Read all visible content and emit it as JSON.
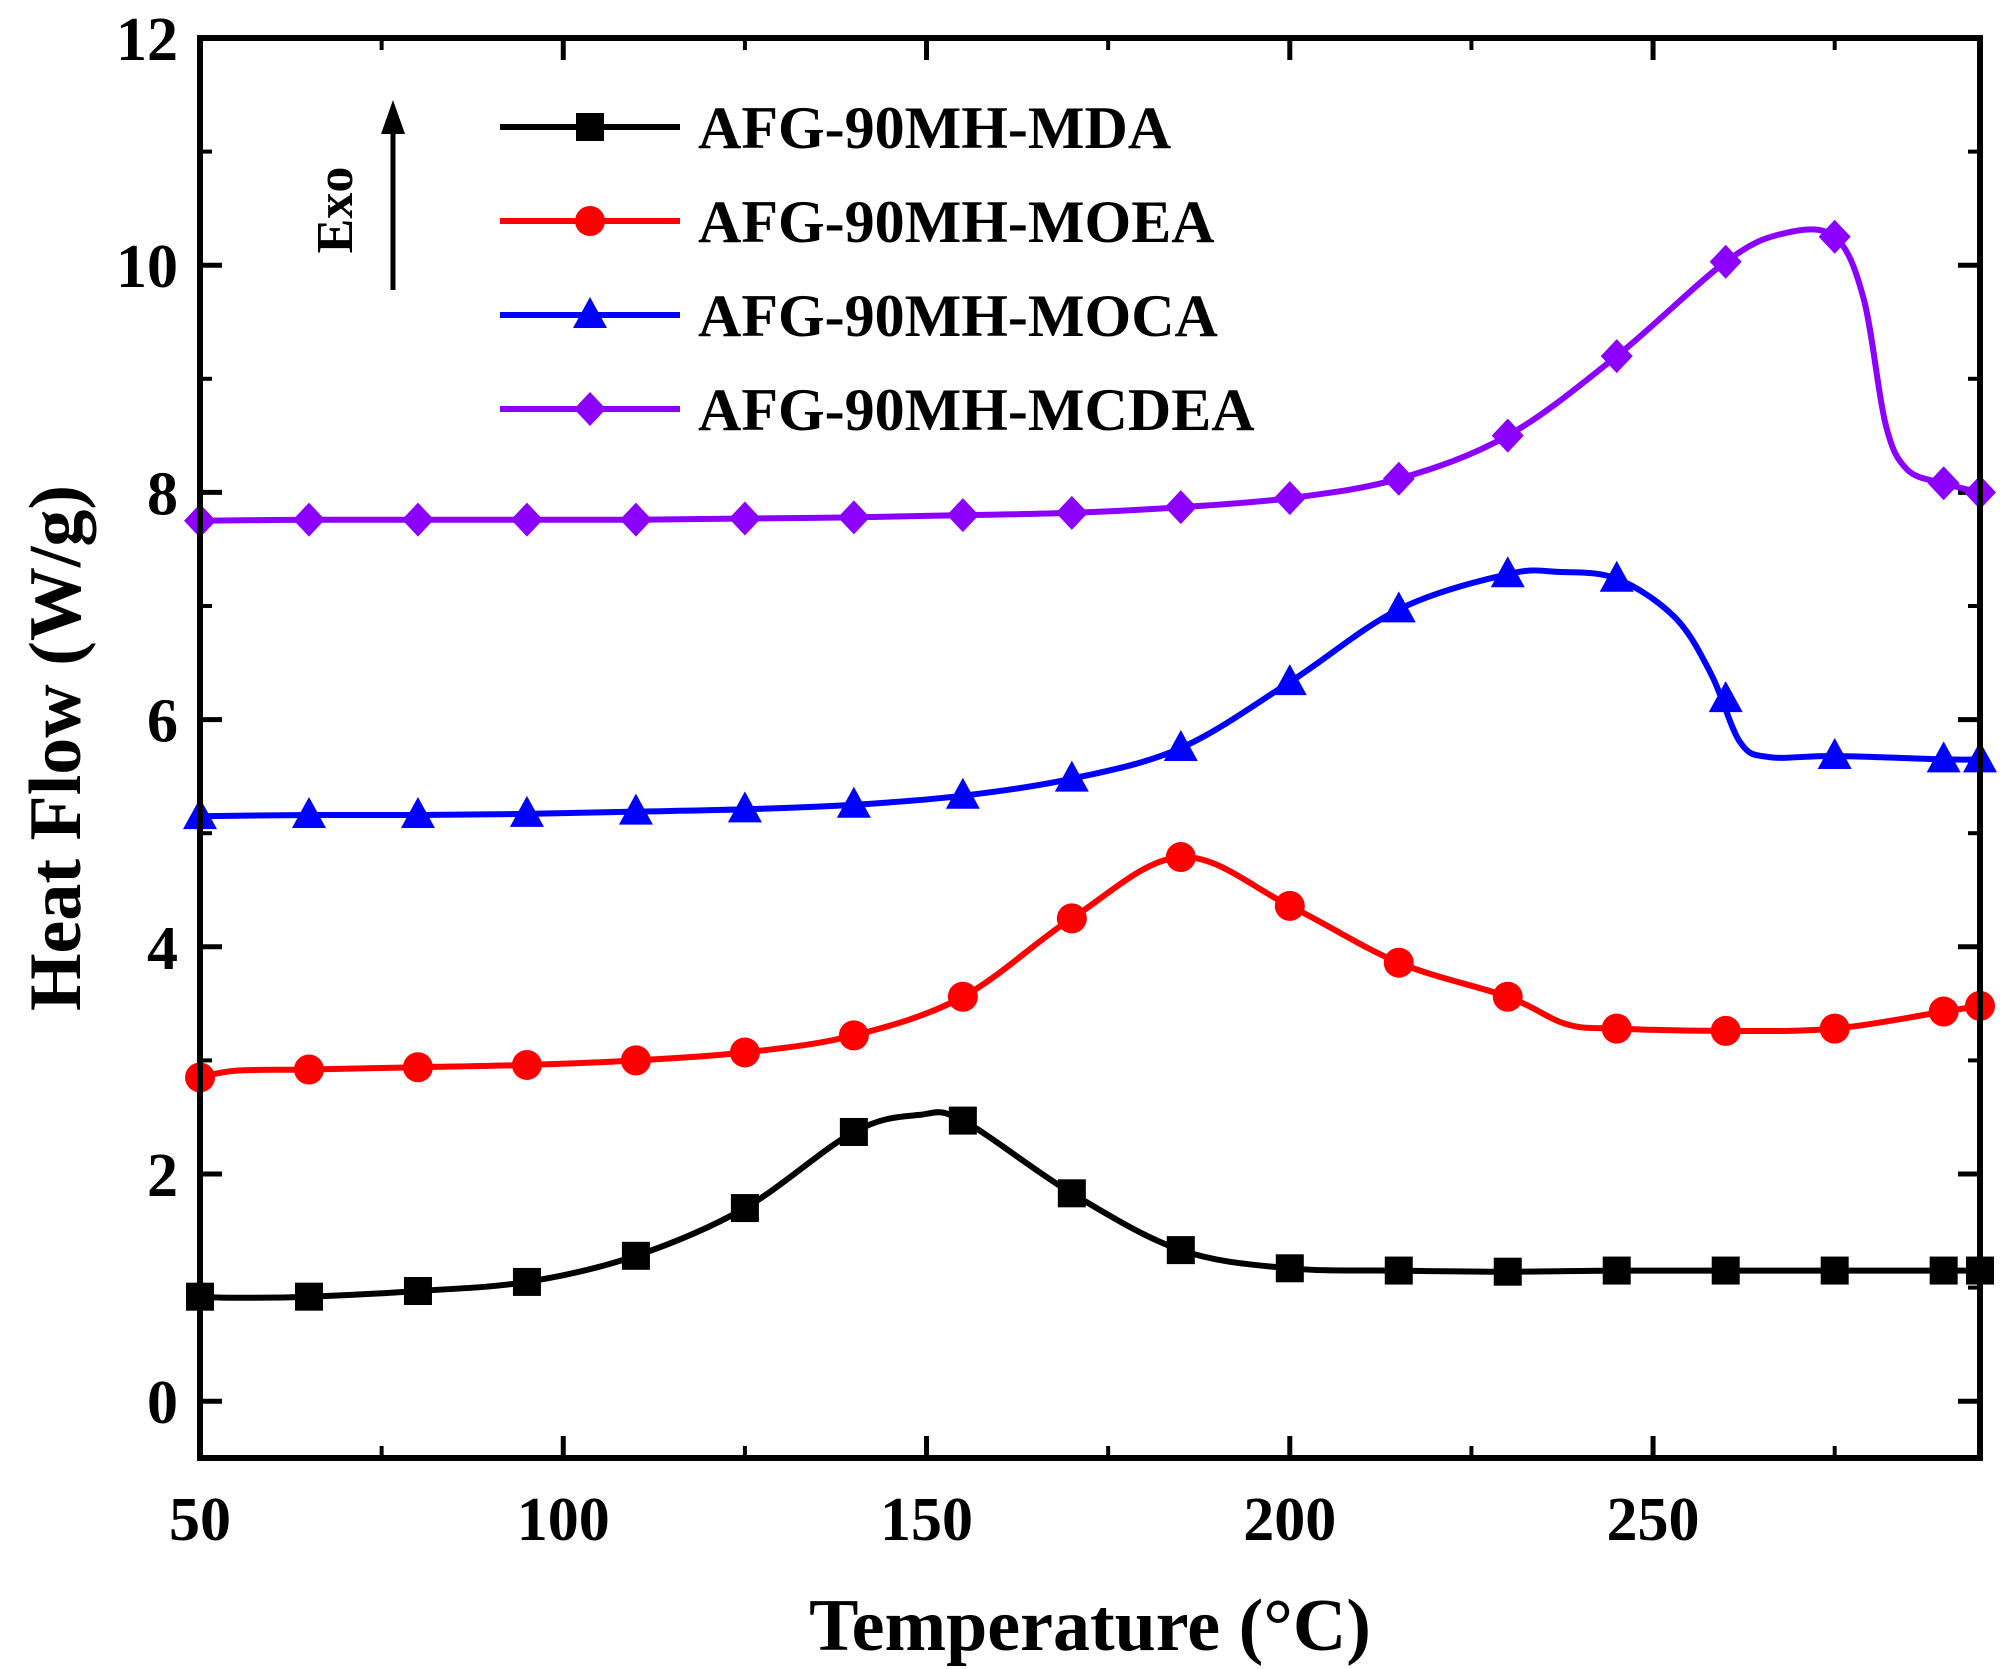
{
  "chart_data": {
    "type": "line",
    "xlabel": "Temperature (°C)",
    "ylabel": "Heat Flow (W/g)",
    "xlim": [
      50,
      295
    ],
    "ylim": [
      -0.5,
      12
    ],
    "xticks": [
      50,
      100,
      150,
      200,
      250
    ],
    "xtick_labels": [
      "50",
      "100",
      "150",
      "200",
      "250"
    ],
    "yticks": [
      0,
      2,
      4,
      6,
      8,
      10,
      12
    ],
    "ytick_labels": [
      "0",
      "2",
      "4",
      "6",
      "8",
      "10",
      "12"
    ],
    "x_minor_step": 25,
    "y_minor_step": 1,
    "legend_position": "top-center",
    "annotation": {
      "text": "Exo",
      "arrow": "up"
    },
    "series": [
      {
        "name": "AFG-90MH-MDA",
        "color": "#000000",
        "marker": "square",
        "x": [
          50,
          55,
          65,
          80,
          95,
          110,
          125,
          140,
          149,
          155,
          170,
          185,
          200,
          215,
          230,
          245,
          260,
          275,
          290,
          295
        ],
        "y": [
          0.92,
          0.91,
          0.92,
          0.97,
          1.05,
          1.28,
          1.7,
          2.37,
          2.52,
          2.47,
          1.83,
          1.33,
          1.17,
          1.15,
          1.14,
          1.15,
          1.15,
          1.15,
          1.15,
          1.15
        ],
        "markers_x": [
          50,
          65,
          80,
          95,
          110,
          125,
          140,
          155,
          170,
          185,
          200,
          215,
          230,
          245,
          260,
          275,
          290,
          295
        ],
        "markers_y": [
          0.92,
          0.92,
          0.97,
          1.05,
          1.28,
          1.7,
          2.37,
          2.47,
          1.83,
          1.33,
          1.17,
          1.15,
          1.14,
          1.15,
          1.15,
          1.15,
          1.15,
          1.15
        ]
      },
      {
        "name": "AFG-90MH-MOEA",
        "color": "#ff0000",
        "marker": "circle",
        "x": [
          50,
          55,
          65,
          80,
          95,
          110,
          125,
          140,
          155,
          170,
          185,
          200,
          215,
          230,
          238,
          245,
          260,
          275,
          290,
          295
        ],
        "y": [
          2.85,
          2.91,
          2.92,
          2.94,
          2.96,
          3.0,
          3.07,
          3.22,
          3.56,
          4.25,
          4.79,
          4.36,
          3.86,
          3.56,
          3.32,
          3.28,
          3.26,
          3.28,
          3.43,
          3.48
        ],
        "markers_x": [
          50,
          65,
          80,
          95,
          110,
          125,
          140,
          155,
          170,
          185,
          200,
          215,
          230,
          245,
          260,
          275,
          290,
          295
        ],
        "markers_y": [
          2.85,
          2.92,
          2.94,
          2.96,
          3.0,
          3.07,
          3.22,
          3.56,
          4.25,
          4.79,
          4.36,
          3.86,
          3.56,
          3.28,
          3.26,
          3.28,
          3.43,
          3.48
        ]
      },
      {
        "name": "AFG-90MH-MOCA",
        "color": "#0000ff",
        "marker": "triangle",
        "x": [
          50,
          65,
          80,
          95,
          110,
          125,
          140,
          155,
          170,
          185,
          200,
          215,
          230,
          237,
          245,
          253,
          258,
          262,
          266,
          275,
          290,
          295
        ],
        "y": [
          5.15,
          5.16,
          5.16,
          5.17,
          5.19,
          5.21,
          5.25,
          5.33,
          5.48,
          5.75,
          6.33,
          6.97,
          7.28,
          7.3,
          7.24,
          6.9,
          6.4,
          5.8,
          5.67,
          5.68,
          5.65,
          5.65
        ],
        "markers_x": [
          50,
          65,
          80,
          95,
          110,
          125,
          140,
          155,
          170,
          185,
          200,
          215,
          230,
          245,
          260,
          275,
          290,
          295
        ],
        "markers_y": [
          5.15,
          5.16,
          5.16,
          5.17,
          5.19,
          5.21,
          5.25,
          5.33,
          5.48,
          5.75,
          6.33,
          6.97,
          7.28,
          7.24,
          6.18,
          5.68,
          5.65,
          5.65
        ]
      },
      {
        "name": "AFG-90MH-MCDEA",
        "color": "#8b00ff",
        "marker": "diamond",
        "x": [
          50,
          65,
          80,
          95,
          110,
          125,
          140,
          155,
          170,
          185,
          200,
          215,
          230,
          245,
          260,
          268,
          275,
          279,
          282,
          285,
          290,
          295
        ],
        "y": [
          7.75,
          7.76,
          7.76,
          7.76,
          7.76,
          7.77,
          7.78,
          7.8,
          7.82,
          7.87,
          7.95,
          8.12,
          8.5,
          9.2,
          10.03,
          10.28,
          10.25,
          9.7,
          8.6,
          8.2,
          8.08,
          8.0
        ],
        "markers_x": [
          50,
          65,
          80,
          95,
          110,
          125,
          140,
          155,
          170,
          185,
          200,
          215,
          230,
          245,
          260,
          275,
          290,
          295
        ],
        "markers_y": [
          7.75,
          7.76,
          7.76,
          7.76,
          7.76,
          7.77,
          7.78,
          7.8,
          7.82,
          7.87,
          7.95,
          8.12,
          8.5,
          9.2,
          10.03,
          10.25,
          8.08,
          8.0
        ]
      }
    ]
  }
}
